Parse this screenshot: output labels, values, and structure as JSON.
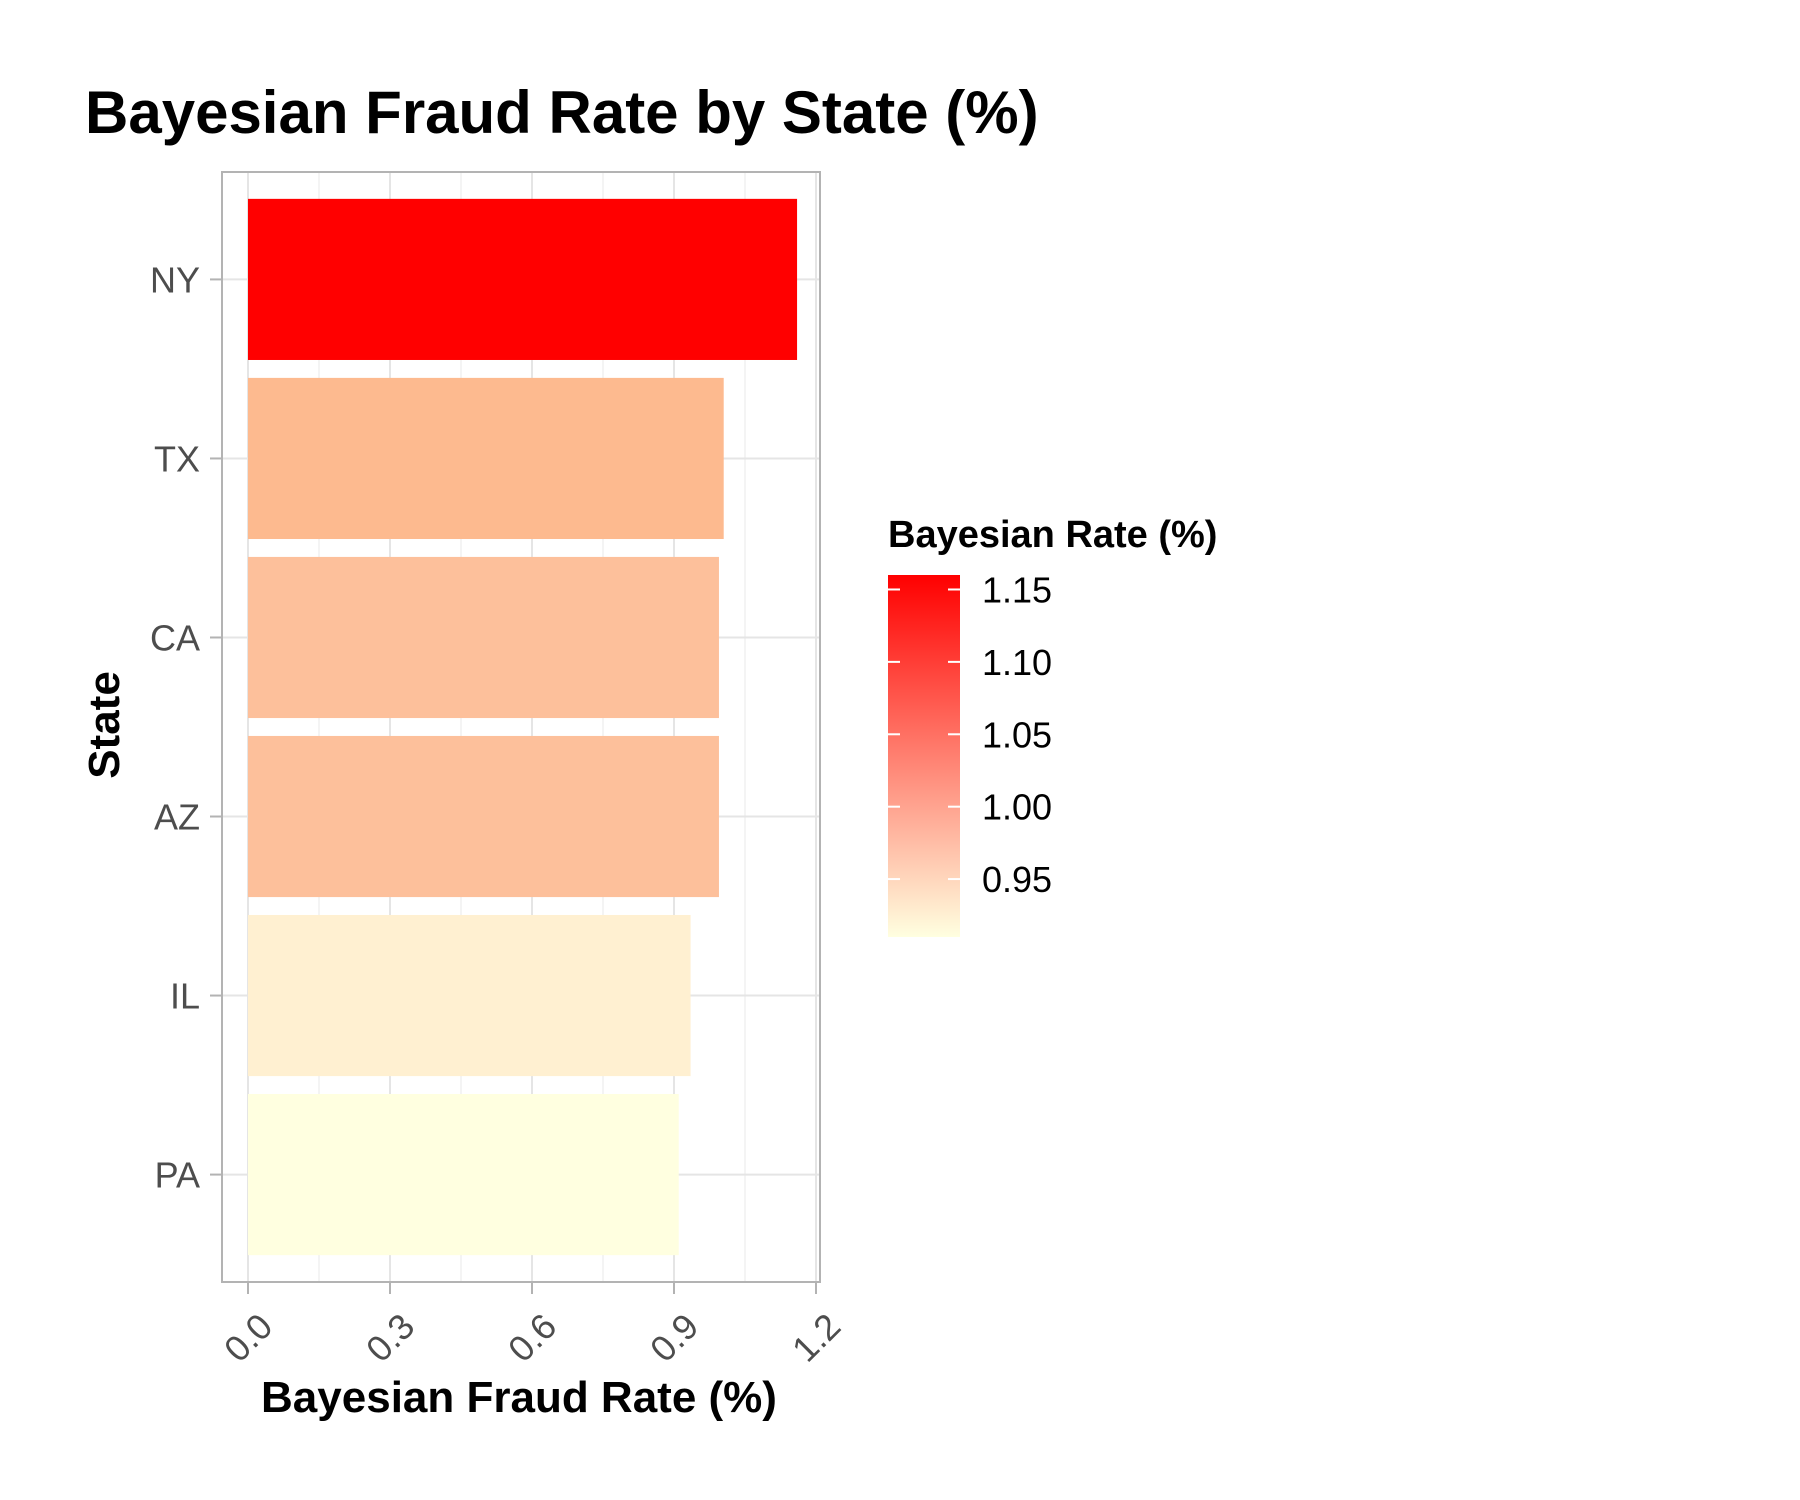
{
  "chart_data": {
    "type": "bar",
    "orientation": "horizontal",
    "title": "Bayesian Fraud Rate by State (%)",
    "xlabel": "Bayesian Fraud Rate (%)",
    "ylabel": "State",
    "categories": [
      "NY",
      "TX",
      "CA",
      "AZ",
      "IL",
      "PA"
    ],
    "values": [
      1.16,
      1.005,
      0.995,
      0.995,
      0.935,
      0.91
    ],
    "colors": [
      "#ff0000",
      "#fdba8f",
      "#fdc09b",
      "#fdc09b",
      "#fff0d1",
      "#ffffe0"
    ],
    "xlim": [
      0,
      1.2
    ],
    "xticks": [
      "0.0",
      "0.3",
      "0.6",
      "0.9",
      "1.2"
    ],
    "xtick_values": [
      0,
      0.3,
      0.6,
      0.9,
      1.2
    ],
    "grid": true,
    "legend": {
      "title": "Bayesian Rate (%)",
      "placement": "right",
      "range": [
        0.91,
        1.16
      ],
      "low_color": "#ffffe0",
      "high_color": "#ff0000",
      "ticks": [
        "1.15",
        "1.10",
        "1.05",
        "1.00",
        "0.95"
      ],
      "tick_values": [
        1.15,
        1.1,
        1.05,
        1.0,
        0.95
      ]
    }
  }
}
